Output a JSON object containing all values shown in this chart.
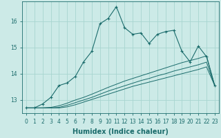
{
  "xlabel": "Humidex (Indice chaleur)",
  "x_values": [
    0,
    1,
    2,
    3,
    4,
    5,
    6,
    7,
    8,
    9,
    10,
    11,
    12,
    13,
    14,
    15,
    16,
    17,
    18,
    19,
    20,
    21,
    22,
    23
  ],
  "main_line": [
    12.7,
    12.7,
    12.85,
    13.1,
    13.55,
    13.65,
    13.9,
    14.45,
    14.85,
    15.9,
    16.1,
    16.55,
    15.75,
    15.5,
    15.55,
    15.15,
    15.5,
    15.6,
    15.65,
    14.85,
    14.45,
    15.05,
    14.65,
    13.55
  ],
  "line2": [
    12.7,
    12.7,
    12.7,
    12.72,
    12.78,
    12.88,
    13.0,
    13.1,
    13.22,
    13.35,
    13.48,
    13.6,
    13.72,
    13.82,
    13.92,
    14.02,
    14.12,
    14.22,
    14.32,
    14.42,
    14.5,
    14.58,
    14.68,
    13.55
  ],
  "line3": [
    12.7,
    12.7,
    12.7,
    12.7,
    12.72,
    12.8,
    12.9,
    13.0,
    13.1,
    13.22,
    13.34,
    13.44,
    13.54,
    13.64,
    13.74,
    13.82,
    13.92,
    14.0,
    14.1,
    14.18,
    14.26,
    14.34,
    14.44,
    13.55
  ],
  "line4": [
    12.7,
    12.7,
    12.7,
    12.7,
    12.7,
    12.74,
    12.82,
    12.92,
    13.02,
    13.12,
    13.22,
    13.32,
    13.42,
    13.52,
    13.6,
    13.68,
    13.76,
    13.84,
    13.92,
    14.0,
    14.08,
    14.16,
    14.26,
    13.55
  ],
  "bg_color": "#cceae7",
  "line_color": "#1a6b6b",
  "grid_color": "#a8d5d0",
  "ylim": [
    12.5,
    16.75
  ],
  "yticks": [
    13,
    14,
    15,
    16
  ],
  "xticks": [
    0,
    1,
    2,
    3,
    4,
    5,
    6,
    7,
    8,
    9,
    10,
    11,
    12,
    13,
    14,
    15,
    16,
    17,
    18,
    19,
    20,
    21,
    22,
    23
  ],
  "tick_fontsize": 5.5,
  "label_fontsize": 7
}
